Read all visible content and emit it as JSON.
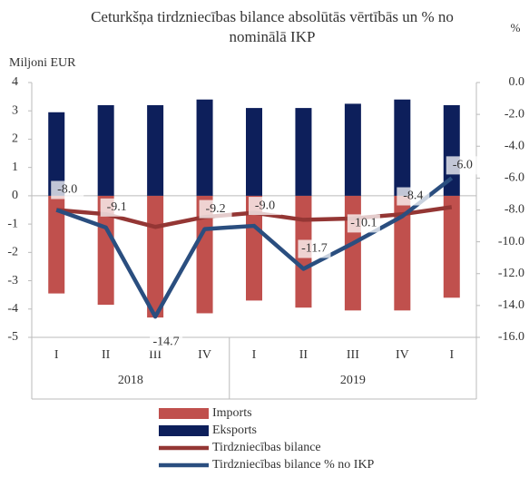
{
  "chart_data": {
    "type": "bar",
    "title": "Ceturkšņa tirdzniecības bilance absolūtās vērtībās un % no nominālā IKP",
    "y_label": "Miljoni EUR",
    "y2_label": "%",
    "categories": [
      "I",
      "II",
      "III",
      "IV",
      "I",
      "II",
      "III",
      "IV",
      "I"
    ],
    "group_labels": [
      "2018",
      "2019"
    ],
    "group_sizes": [
      4,
      5
    ],
    "ylim": [
      -5,
      4
    ],
    "yticks": [
      -5,
      -4,
      -3,
      -2,
      -1,
      0,
      1,
      2,
      3,
      4
    ],
    "y2lim": [
      -16,
      0
    ],
    "y2ticks": [
      {
        "value": -16,
        "label": "-16.0"
      },
      {
        "value": -14,
        "label": "-14.0"
      },
      {
        "value": -12,
        "label": "-12.0"
      },
      {
        "value": -10,
        "label": "-10.0"
      },
      {
        "value": -8,
        "label": "-8.0"
      },
      {
        "value": -6,
        "label": "-6.0"
      },
      {
        "value": -4,
        "label": "-4.0"
      },
      {
        "value": -2,
        "label": "-2.0"
      },
      {
        "value": 0,
        "label": "0.0"
      }
    ],
    "grid": false,
    "series": [
      {
        "name": "Imports",
        "type": "bar",
        "color": "#c0504d",
        "values": [
          -3.45,
          -3.85,
          -4.3,
          -4.15,
          -3.7,
          -3.95,
          -4.05,
          -4.05,
          -3.6
        ]
      },
      {
        "name": "Eksports",
        "type": "bar",
        "color": "#0d1f5b",
        "values": [
          2.95,
          3.2,
          3.2,
          3.4,
          3.1,
          3.1,
          3.25,
          3.4,
          3.2
        ]
      },
      {
        "name": "Tirdzniecības bilance",
        "type": "line",
        "color": "#943634",
        "values": [
          -0.5,
          -0.65,
          -1.1,
          -0.75,
          -0.6,
          -0.85,
          -0.8,
          -0.65,
          -0.4
        ]
      },
      {
        "name": "Tirdzniecības bilance % no IKP",
        "type": "line",
        "axis": "y2",
        "color": "#2a4e7f",
        "values": [
          -8.0,
          -9.1,
          -14.7,
          -9.2,
          -9.0,
          -11.7,
          -10.1,
          -8.4,
          -6.0
        ],
        "value_labels": [
          "-8.0",
          "-9.1",
          "-14.7",
          "-9.2",
          "-9.0",
          "-11.7",
          "-10.1",
          "-8.4",
          "-6.0"
        ]
      }
    ]
  }
}
